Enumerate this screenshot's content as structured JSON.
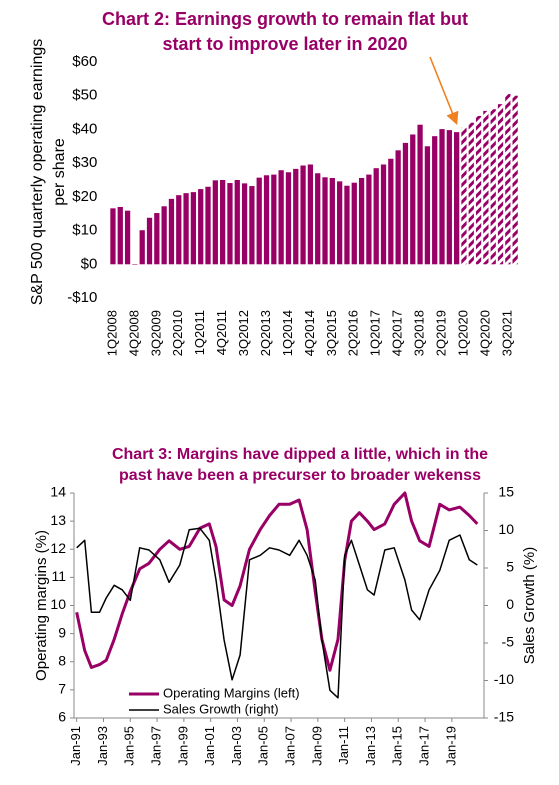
{
  "chart_data": [
    {
      "type": "bar",
      "title": [
        "Chart 2: Earnings growth to remain flat but",
        "start to improve later in 2020"
      ],
      "y_label": [
        "S&P 500 quarterly operating earnings",
        "per share"
      ],
      "categories": [
        "1Q2008",
        null,
        null,
        "4Q2008",
        null,
        null,
        "3Q2009",
        null,
        null,
        "2Q2010",
        null,
        null,
        "1Q2011",
        null,
        null,
        "4Q2011",
        null,
        null,
        "3Q2012",
        null,
        null,
        "2Q2013",
        null,
        null,
        "1Q2014",
        null,
        null,
        "4Q2014",
        null,
        null,
        "3Q2015",
        null,
        null,
        "2Q2016",
        null,
        null,
        "1Q2017",
        null,
        null,
        "4Q2017",
        null,
        null,
        "3Q2018",
        null,
        null,
        "2Q2019",
        null,
        null,
        "1Q2020",
        null,
        null,
        "4Q2020",
        null,
        null,
        "3Q2021",
        null
      ],
      "series": [
        {
          "color": "#990066",
          "fill": "solid",
          "values": [
            16.6,
            17.0,
            15.9,
            -0.1,
            10.1,
            13.8,
            15.2,
            17.2,
            19.4,
            20.5,
            21.1,
            21.4,
            22.3,
            23.0,
            24.9,
            25.0,
            24.1,
            25.0,
            24.0,
            23.2,
            25.7,
            26.4,
            26.6,
            27.9,
            27.3,
            28.3,
            29.3,
            29.6,
            27.0,
            25.8,
            25.6,
            24.6,
            23.3,
            24.2,
            25.6,
            26.6,
            28.5,
            29.6,
            31.3,
            33.8,
            36.0,
            38.5,
            41.4,
            35.0,
            38.0,
            40.1,
            39.8,
            39.2,
            null,
            null,
            null,
            null,
            null,
            null,
            null,
            null
          ]
        },
        {
          "color": "#990066",
          "fill": "hatched",
          "values": [
            null,
            null,
            null,
            null,
            null,
            null,
            null,
            null,
            null,
            null,
            null,
            null,
            null,
            null,
            null,
            null,
            null,
            null,
            null,
            null,
            null,
            null,
            null,
            null,
            null,
            null,
            null,
            null,
            null,
            null,
            null,
            null,
            null,
            null,
            null,
            null,
            null,
            null,
            null,
            null,
            null,
            null,
            null,
            null,
            null,
            null,
            null,
            null,
            40.5,
            42.0,
            44.0,
            45.5,
            46.0,
            47.5,
            50.5,
            50.0
          ]
        }
      ],
      "ylim": [
        -10,
        60
      ],
      "yticks": [
        {
          "value": -10,
          "label": "-$10"
        },
        {
          "value": 0,
          "label": "$0"
        },
        {
          "value": 10,
          "label": "$10"
        },
        {
          "value": 20,
          "label": "$20"
        },
        {
          "value": 30,
          "label": "$30"
        },
        {
          "value": 40,
          "label": "$40"
        },
        {
          "value": 50,
          "label": "$50"
        },
        {
          "value": 60,
          "label": "$60"
        }
      ]
    },
    {
      "type": "line",
      "title": [
        "Chart 3: Margins have dipped a little, which in the",
        "past have been a precurser to broader wekenss"
      ],
      "y_label": "Operating margins (%)",
      "y2_label": "Sales Growth (%)",
      "x": [
        1991.0,
        1991.6,
        1992.1,
        1992.7,
        1993.2,
        1993.8,
        1994.4,
        1995.0,
        1995.7,
        1996.4,
        1997.2,
        1997.9,
        1998.7,
        1999.4,
        2000.2,
        2000.9,
        2001.4,
        2002.0,
        2002.6,
        2003.2,
        2003.9,
        2004.7,
        2005.4,
        2006.1,
        2006.9,
        2007.6,
        2008.2,
        2008.8,
        2009.3,
        2009.9,
        2010.5,
        2011.0,
        2011.5,
        2012.1,
        2012.7,
        2013.2,
        2014.0,
        2014.7,
        2015.5,
        2016.0,
        2016.6,
        2017.3,
        2018.1,
        2018.8,
        2019.6,
        2020.3,
        2020.9
      ],
      "xlim": [
        1990.8,
        2021.4
      ],
      "xticks": [
        {
          "value": 1991,
          "label": "Jan-91"
        },
        {
          "value": 1993,
          "label": "Jan-93"
        },
        {
          "value": 1995,
          "label": "Jan-95"
        },
        {
          "value": 1997,
          "label": "Jan-97"
        },
        {
          "value": 1999,
          "label": "Jan-99"
        },
        {
          "value": 2001,
          "label": "Jan-01"
        },
        {
          "value": 2003,
          "label": "Jan-03"
        },
        {
          "value": 2005,
          "label": "Jan-05"
        },
        {
          "value": 2007,
          "label": "Jan-07"
        },
        {
          "value": 2009,
          "label": "Jan-09"
        },
        {
          "value": 2011,
          "label": "Jan-11"
        },
        {
          "value": 2013,
          "label": "Jan-13"
        },
        {
          "value": 2015,
          "label": "Jan-15"
        },
        {
          "value": 2017,
          "label": "Jan-17"
        },
        {
          "value": 2019,
          "label": "Jan-19"
        }
      ],
      "ylim": [
        6,
        14
      ],
      "yticks": [
        6,
        7,
        8,
        9,
        10,
        11,
        12,
        13,
        14
      ],
      "y2lim": [
        -15,
        15
      ],
      "y2ticks": [
        -15,
        -10,
        -5,
        0,
        5,
        10,
        15
      ],
      "legend": "lower left",
      "series": [
        {
          "name": "Operating Margins (left)",
          "color": "#990066",
          "width": 3,
          "values": [
            9.76,
            8.4,
            7.8,
            7.9,
            8.05,
            8.8,
            9.7,
            10.5,
            11.3,
            11.5,
            12.0,
            12.3,
            12.0,
            12.1,
            12.75,
            12.9,
            12.1,
            10.2,
            10.0,
            10.7,
            12.0,
            12.7,
            13.2,
            13.6,
            13.6,
            13.75,
            12.7,
            10.5,
            8.8,
            7.7,
            8.8,
            11.6,
            13.0,
            13.3,
            13.0,
            12.7,
            12.9,
            13.6,
            14.0,
            13.0,
            12.3,
            12.1,
            13.6,
            13.4,
            13.5,
            13.2,
            12.9
          ]
        },
        {
          "name": "Sales Growth (right)",
          "color": "#000000",
          "width": 1.5,
          "axis": "y2",
          "values": [
            7.7,
            8.7,
            -0.9,
            -0.9,
            1.0,
            2.7,
            2.1,
            0.7,
            7.7,
            7.4,
            6.1,
            3.1,
            5.4,
            10.1,
            10.3,
            8.7,
            3.4,
            -4.6,
            -9.9,
            -6.6,
            6.1,
            6.7,
            7.7,
            7.4,
            6.7,
            8.7,
            6.7,
            3.4,
            -4.6,
            -11.3,
            -12.3,
            6.7,
            8.7,
            5.4,
            2.1,
            1.4,
            7.4,
            7.7,
            3.4,
            -0.6,
            -1.9,
            2.1,
            4.7,
            8.7,
            9.4,
            6.1,
            5.4
          ]
        }
      ]
    }
  ]
}
